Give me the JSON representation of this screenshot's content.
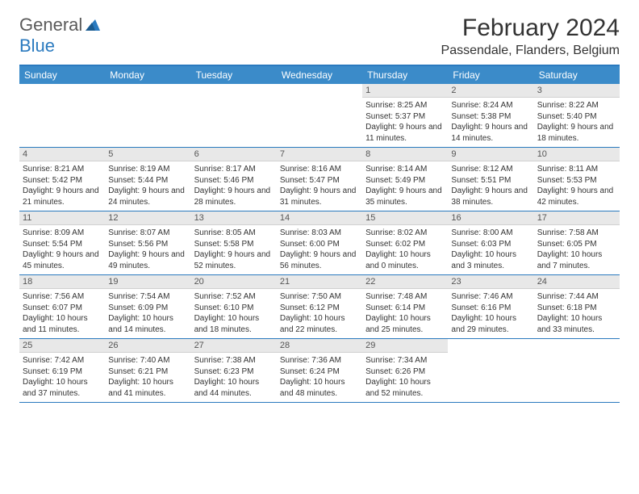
{
  "brand": {
    "part1": "General",
    "part2": "Blue"
  },
  "title": "February 2024",
  "subtitle": "Passendale, Flanders, Belgium",
  "colors": {
    "header_bar": "#3b8bc9",
    "accent": "#2a7abf",
    "daynum_bg": "#e8e8e8",
    "text": "#333333"
  },
  "weekdays": [
    "Sunday",
    "Monday",
    "Tuesday",
    "Wednesday",
    "Thursday",
    "Friday",
    "Saturday"
  ],
  "weeks": [
    [
      null,
      null,
      null,
      null,
      {
        "n": "1",
        "sunrise": "8:25 AM",
        "sunset": "5:37 PM",
        "daylight": "9 hours and 11 minutes."
      },
      {
        "n": "2",
        "sunrise": "8:24 AM",
        "sunset": "5:38 PM",
        "daylight": "9 hours and 14 minutes."
      },
      {
        "n": "3",
        "sunrise": "8:22 AM",
        "sunset": "5:40 PM",
        "daylight": "9 hours and 18 minutes."
      }
    ],
    [
      {
        "n": "4",
        "sunrise": "8:21 AM",
        "sunset": "5:42 PM",
        "daylight": "9 hours and 21 minutes."
      },
      {
        "n": "5",
        "sunrise": "8:19 AM",
        "sunset": "5:44 PM",
        "daylight": "9 hours and 24 minutes."
      },
      {
        "n": "6",
        "sunrise": "8:17 AM",
        "sunset": "5:46 PM",
        "daylight": "9 hours and 28 minutes."
      },
      {
        "n": "7",
        "sunrise": "8:16 AM",
        "sunset": "5:47 PM",
        "daylight": "9 hours and 31 minutes."
      },
      {
        "n": "8",
        "sunrise": "8:14 AM",
        "sunset": "5:49 PM",
        "daylight": "9 hours and 35 minutes."
      },
      {
        "n": "9",
        "sunrise": "8:12 AM",
        "sunset": "5:51 PM",
        "daylight": "9 hours and 38 minutes."
      },
      {
        "n": "10",
        "sunrise": "8:11 AM",
        "sunset": "5:53 PM",
        "daylight": "9 hours and 42 minutes."
      }
    ],
    [
      {
        "n": "11",
        "sunrise": "8:09 AM",
        "sunset": "5:54 PM",
        "daylight": "9 hours and 45 minutes."
      },
      {
        "n": "12",
        "sunrise": "8:07 AM",
        "sunset": "5:56 PM",
        "daylight": "9 hours and 49 minutes."
      },
      {
        "n": "13",
        "sunrise": "8:05 AM",
        "sunset": "5:58 PM",
        "daylight": "9 hours and 52 minutes."
      },
      {
        "n": "14",
        "sunrise": "8:03 AM",
        "sunset": "6:00 PM",
        "daylight": "9 hours and 56 minutes."
      },
      {
        "n": "15",
        "sunrise": "8:02 AM",
        "sunset": "6:02 PM",
        "daylight": "10 hours and 0 minutes."
      },
      {
        "n": "16",
        "sunrise": "8:00 AM",
        "sunset": "6:03 PM",
        "daylight": "10 hours and 3 minutes."
      },
      {
        "n": "17",
        "sunrise": "7:58 AM",
        "sunset": "6:05 PM",
        "daylight": "10 hours and 7 minutes."
      }
    ],
    [
      {
        "n": "18",
        "sunrise": "7:56 AM",
        "sunset": "6:07 PM",
        "daylight": "10 hours and 11 minutes."
      },
      {
        "n": "19",
        "sunrise": "7:54 AM",
        "sunset": "6:09 PM",
        "daylight": "10 hours and 14 minutes."
      },
      {
        "n": "20",
        "sunrise": "7:52 AM",
        "sunset": "6:10 PM",
        "daylight": "10 hours and 18 minutes."
      },
      {
        "n": "21",
        "sunrise": "7:50 AM",
        "sunset": "6:12 PM",
        "daylight": "10 hours and 22 minutes."
      },
      {
        "n": "22",
        "sunrise": "7:48 AM",
        "sunset": "6:14 PM",
        "daylight": "10 hours and 25 minutes."
      },
      {
        "n": "23",
        "sunrise": "7:46 AM",
        "sunset": "6:16 PM",
        "daylight": "10 hours and 29 minutes."
      },
      {
        "n": "24",
        "sunrise": "7:44 AM",
        "sunset": "6:18 PM",
        "daylight": "10 hours and 33 minutes."
      }
    ],
    [
      {
        "n": "25",
        "sunrise": "7:42 AM",
        "sunset": "6:19 PM",
        "daylight": "10 hours and 37 minutes."
      },
      {
        "n": "26",
        "sunrise": "7:40 AM",
        "sunset": "6:21 PM",
        "daylight": "10 hours and 41 minutes."
      },
      {
        "n": "27",
        "sunrise": "7:38 AM",
        "sunset": "6:23 PM",
        "daylight": "10 hours and 44 minutes."
      },
      {
        "n": "28",
        "sunrise": "7:36 AM",
        "sunset": "6:24 PM",
        "daylight": "10 hours and 48 minutes."
      },
      {
        "n": "29",
        "sunrise": "7:34 AM",
        "sunset": "6:26 PM",
        "daylight": "10 hours and 52 minutes."
      },
      null,
      null
    ]
  ],
  "labels": {
    "sunrise": "Sunrise:",
    "sunset": "Sunset:",
    "daylight": "Daylight:"
  }
}
